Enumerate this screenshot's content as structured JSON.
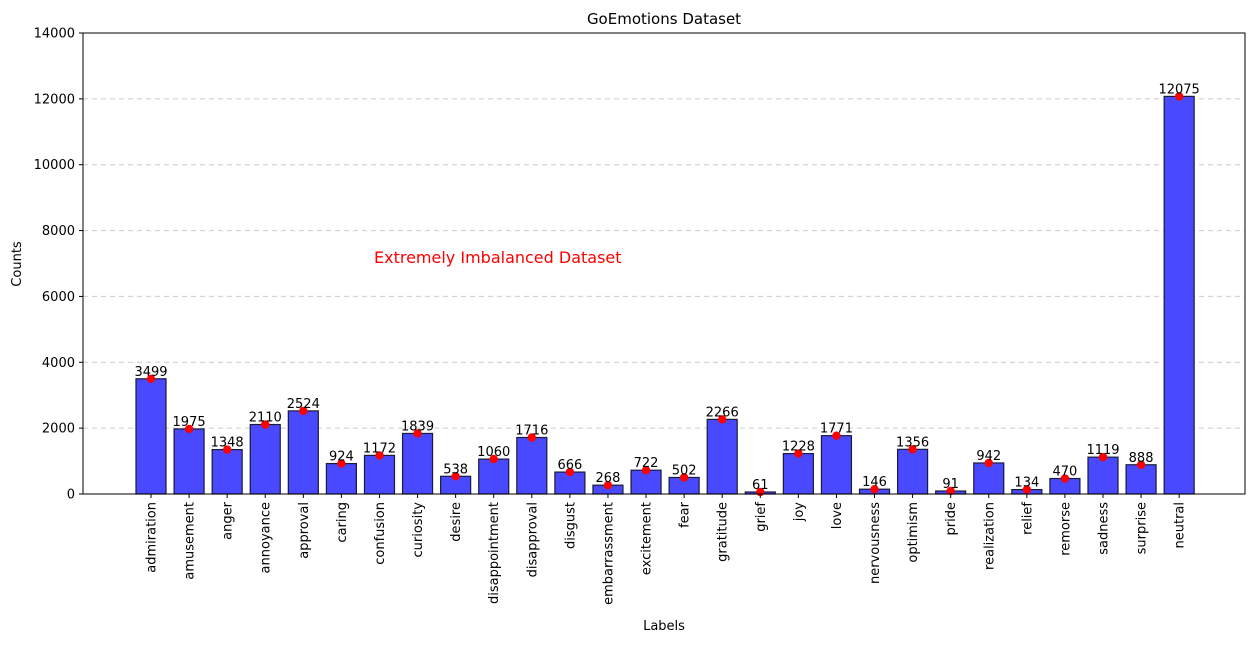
{
  "chart_data": {
    "type": "bar",
    "title": "GoEmotions Dataset",
    "xlabel": "Labels",
    "ylabel": "Counts",
    "ylim": [
      0,
      14000
    ],
    "yticks": [
      0,
      2000,
      4000,
      6000,
      8000,
      10000,
      12000,
      14000
    ],
    "grid": "y-dashed",
    "annotation": "Extremely Imbalanced Dataset",
    "categories": [
      "admiration",
      "amusement",
      "anger",
      "annoyance",
      "approval",
      "caring",
      "confusion",
      "curiosity",
      "desire",
      "disappointment",
      "disapproval",
      "disgust",
      "embarrassment",
      "excitement",
      "fear",
      "gratitude",
      "grief",
      "joy",
      "love",
      "nervousness",
      "optimism",
      "pride",
      "realization",
      "relief",
      "remorse",
      "sadness",
      "surprise",
      "neutral"
    ],
    "values": [
      3499,
      1975,
      1348,
      2110,
      2524,
      924,
      1172,
      1839,
      538,
      1060,
      1716,
      666,
      268,
      722,
      502,
      2266,
      61,
      1228,
      1771,
      146,
      1356,
      91,
      942,
      134,
      470,
      1119,
      888,
      12075
    ],
    "colors": {
      "bar": "#4949ff",
      "bar_edge": "#1a1a3a",
      "marker": "#ff0000",
      "annotation": "#ff0000",
      "grid": "#cccccc"
    }
  }
}
